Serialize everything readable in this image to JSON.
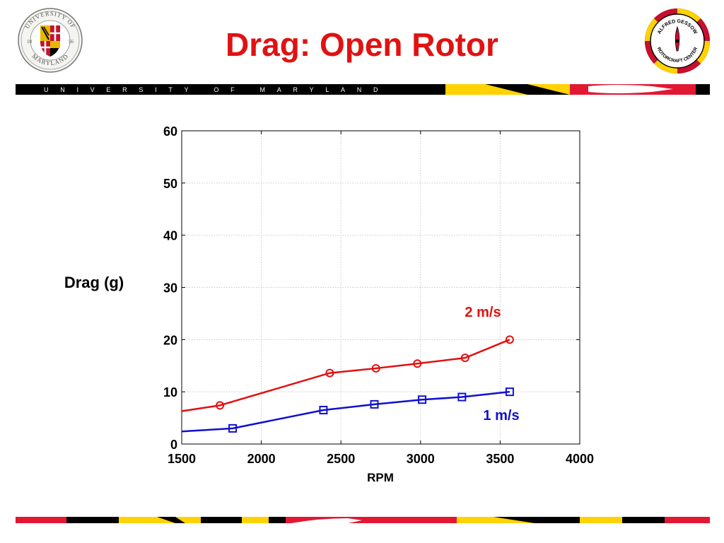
{
  "slide": {
    "title": "Drag: Open Rotor",
    "header_banner_text": "UNIVERSITY OF MARYLAND",
    "left_logo": {
      "name": "university-of-maryland-seal",
      "text_top": "UNIVERSITY OF",
      "text_bottom": "MARYLAND",
      "year_left": "18",
      "year_right": "56"
    },
    "right_logo": {
      "name": "alfred-gessow-rotorcraft-center-logo",
      "text_top": "ALFRED GESSOW",
      "text_bottom": "ROTORCRAFT CENTER"
    },
    "colors": {
      "title": "#e01212",
      "maryland_red": "#e21833",
      "maryland_gold": "#ffd200",
      "black": "#000000"
    }
  },
  "chart_data": {
    "type": "line",
    "xlabel": "RPM",
    "ylabel": "Drag (g)",
    "xlim": [
      1500,
      4000
    ],
    "ylim": [
      0,
      60
    ],
    "xticks": [
      1500,
      2000,
      2500,
      3000,
      3500,
      4000
    ],
    "yticks": [
      0,
      10,
      20,
      30,
      40,
      50,
      60
    ],
    "grid": true,
    "series": [
      {
        "name": "2 m/s",
        "color": "#e01010",
        "marker": "circle",
        "line_start": {
          "x": 1500,
          "y": 6.3
        },
        "x": [
          1740,
          2430,
          2720,
          2980,
          3280,
          3560
        ],
        "y": [
          7.4,
          13.6,
          14.5,
          15.4,
          16.5,
          20.0
        ]
      },
      {
        "name": "1 m/s",
        "color": "#1010d0",
        "marker": "square",
        "line_start": {
          "x": 1500,
          "y": 2.4
        },
        "x": [
          1820,
          2390,
          2710,
          3010,
          3260,
          3560
        ],
        "y": [
          3.0,
          6.5,
          7.6,
          8.5,
          9.0,
          10.0
        ]
      }
    ]
  }
}
